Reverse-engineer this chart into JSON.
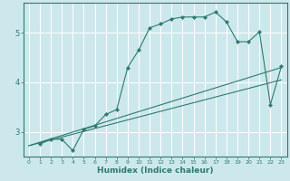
{
  "title": "",
  "xlabel": "Humidex (Indice chaleur)",
  "ylabel": "",
  "bg_color": "#cde8ec",
  "grid_color": "#ffffff",
  "line_color": "#2d7a6e",
  "xlim": [
    -0.5,
    23.5
  ],
  "ylim": [
    2.5,
    5.6
  ],
  "yticks": [
    3,
    4,
    5
  ],
  "xticks": [
    0,
    1,
    2,
    3,
    4,
    5,
    6,
    7,
    8,
    9,
    10,
    11,
    12,
    13,
    14,
    15,
    16,
    17,
    18,
    19,
    20,
    21,
    22,
    23
  ],
  "line1_x": [
    0,
    23
  ],
  "line1_y": [
    2.72,
    4.3
  ],
  "line2_x": [
    0,
    23
  ],
  "line2_y": [
    2.72,
    4.05
  ],
  "curve_x": [
    1,
    2,
    3,
    4,
    5,
    6,
    7,
    8,
    9,
    10,
    11,
    12,
    13,
    14,
    15,
    16,
    17,
    18,
    19,
    20,
    21,
    22,
    23
  ],
  "curve_y": [
    2.75,
    2.85,
    2.85,
    2.62,
    3.05,
    3.12,
    3.35,
    3.45,
    4.3,
    4.65,
    5.1,
    5.18,
    5.28,
    5.32,
    5.32,
    5.32,
    5.42,
    5.22,
    4.82,
    4.82,
    5.02,
    3.55,
    4.32
  ]
}
